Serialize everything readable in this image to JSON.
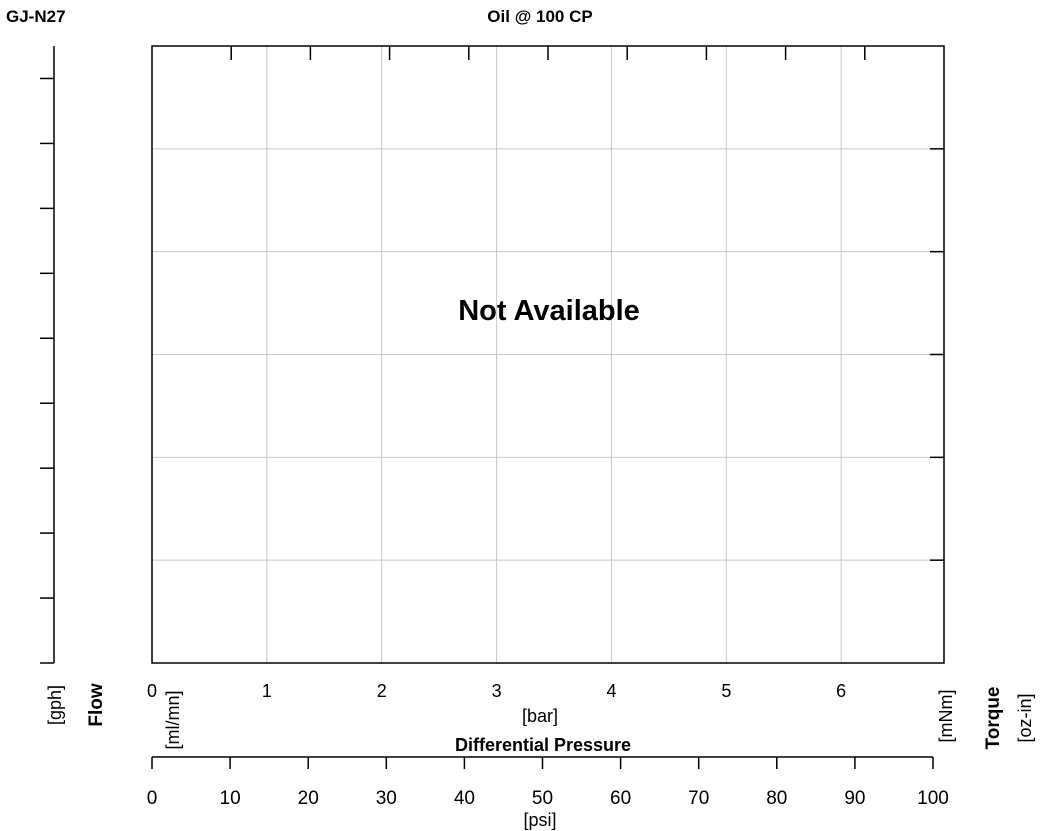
{
  "chart_data": {
    "type": "line",
    "model": "GJ-N27",
    "title": "Oil @ 100 CP",
    "message": "Not Available",
    "series": [],
    "x_bar": {
      "ticks": [
        "0",
        "1",
        "2",
        "3",
        "4",
        "5",
        "6"
      ],
      "range": [
        0,
        6.895
      ],
      "unit_label": "[bar]"
    },
    "x_psi": {
      "ticks": [
        "0",
        "10",
        "20",
        "30",
        "40",
        "50",
        "60",
        "70",
        "80",
        "90",
        "100"
      ],
      "range": [
        0,
        100
      ],
      "unit_label": "[psi]"
    },
    "xlabel": "Differential Pressure",
    "y_left": {
      "label": "Flow",
      "unit_outer": "[gph]",
      "unit_inner": "[ml/mn]"
    },
    "y_right": {
      "label": "Torque",
      "unit_outer": "[oz-in]",
      "unit_inner": "[mNm]"
    },
    "grid": true
  }
}
